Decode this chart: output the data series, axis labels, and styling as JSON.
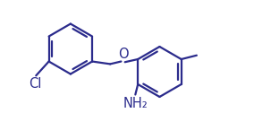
{
  "bg_color": "#ffffff",
  "line_color": "#2b2b8c",
  "lw": 1.6,
  "font_color": "#2b2b8c",
  "font_size": 9.0,
  "figsize": [
    2.84,
    1.55
  ],
  "dpi": 100,
  "r": 0.195,
  "xlim": [
    -0.15,
    1.55
  ],
  "ylim": [
    -0.08,
    1.0
  ]
}
